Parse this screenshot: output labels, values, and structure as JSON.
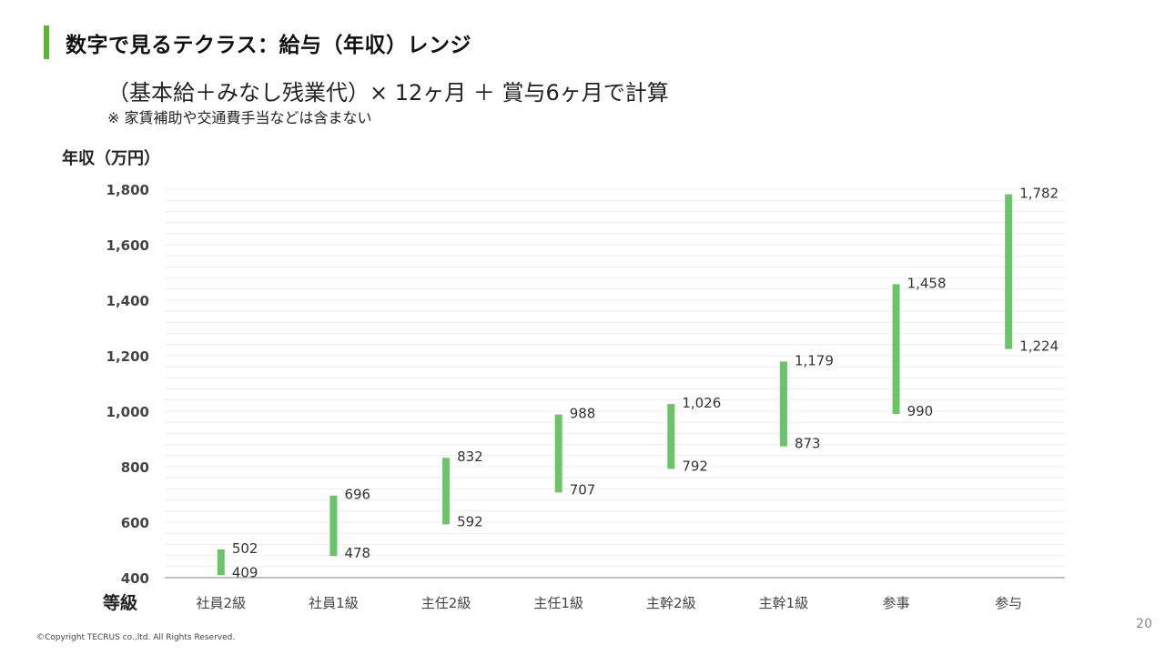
{
  "slide": {
    "title": "数字で見るテクラス：給与（年収）レンジ",
    "formula": "（基本給＋みなし残業代）× 12ヶ月 ＋ 賞与6ヶ月で計算",
    "note": "※ 家賃補助や交通費手当などは含まない",
    "page_number": "20",
    "copyright": "©Copyright TECRUS co.,ltd. All Rights Reserved.",
    "accent_color": "#5cb531"
  },
  "chart_data": {
    "type": "bar",
    "subtype": "floating-range",
    "ylabel": "年収（万円）",
    "xlabel": "等級",
    "ylim": [
      400,
      1800
    ],
    "yticks": [
      400,
      600,
      800,
      1000,
      1200,
      1400,
      1600,
      1800
    ],
    "ytick_labels": [
      "400",
      "600",
      "800",
      "1,000",
      "1,200",
      "1,400",
      "1,600",
      "1,800"
    ],
    "grid": true,
    "bar_color": "#6cc46a",
    "categories": [
      "社員2級",
      "社員1級",
      "主任2級",
      "主任1級",
      "主幹2級",
      "主幹1級",
      "参事",
      "参与"
    ],
    "min": [
      409,
      478,
      592,
      707,
      792,
      873,
      990,
      1224
    ],
    "max": [
      502,
      696,
      832,
      988,
      1026,
      1179,
      1458,
      1782
    ],
    "min_labels": [
      "409",
      "478",
      "592",
      "707",
      "792",
      "873",
      "990",
      "1,224"
    ],
    "max_labels": [
      "502",
      "696",
      "832",
      "988",
      "1,026",
      "1,179",
      "1,458",
      "1,782"
    ]
  }
}
